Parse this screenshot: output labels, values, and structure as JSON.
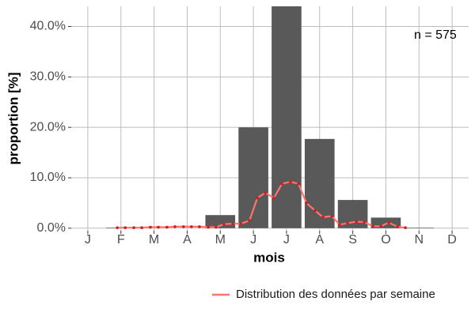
{
  "chart_data": {
    "type": "bar",
    "categories": [
      "J",
      "F",
      "M",
      "A",
      "M",
      "J",
      "J",
      "A",
      "S",
      "O",
      "N",
      "D"
    ],
    "values": [
      0,
      0.1,
      0,
      0,
      2.6,
      20,
      44,
      17.7,
      5.6,
      2.1,
      0.1,
      0
    ],
    "color": "#595959",
    "ylim": [
      -0.5,
      44
    ],
    "yticks": [
      {
        "value": 0,
        "label": "0.0%"
      },
      {
        "value": 10,
        "label": "10.0%"
      },
      {
        "value": 20,
        "label": "20.0%"
      },
      {
        "value": 30,
        "label": "30.0%"
      },
      {
        "value": 40,
        "label": "40.0%"
      }
    ],
    "xlim": [
      0.5,
      12.5
    ],
    "x_label": "mois",
    "y_label": "proportion [%]",
    "annotation": "n = 575",
    "grid": true,
    "legend": "bottom-right",
    "line": {
      "name": "Distribution des données par semaine",
      "color": "#f8766d",
      "point_color": "#d7191c",
      "x": [
        1.89,
        2.13,
        2.39,
        2.63,
        2.89,
        3.13,
        3.39,
        3.63,
        3.89,
        4.13,
        4.37,
        4.64,
        4.87,
        5.11,
        5.38,
        5.62,
        5.88,
        6.12,
        6.36,
        6.62,
        6.86,
        7.12,
        7.36,
        7.6,
        7.86,
        8.1,
        8.37,
        8.6,
        8.84,
        9.11,
        9.35,
        9.61,
        9.85,
        10.09,
        10.35,
        10.59
      ],
      "values": [
        0.1,
        0.1,
        0.1,
        0.1,
        0.2,
        0.2,
        0.2,
        0.3,
        0.3,
        0.3,
        0.3,
        0.2,
        0.2,
        0.8,
        0.9,
        0.9,
        1.5,
        6,
        7,
        6,
        8.8,
        9.2,
        8.8,
        5,
        3.5,
        2.2,
        2.4,
        0.7,
        1.0,
        1.3,
        1.2,
        0.4,
        0.4,
        1.1,
        0.3,
        0.1
      ]
    }
  }
}
